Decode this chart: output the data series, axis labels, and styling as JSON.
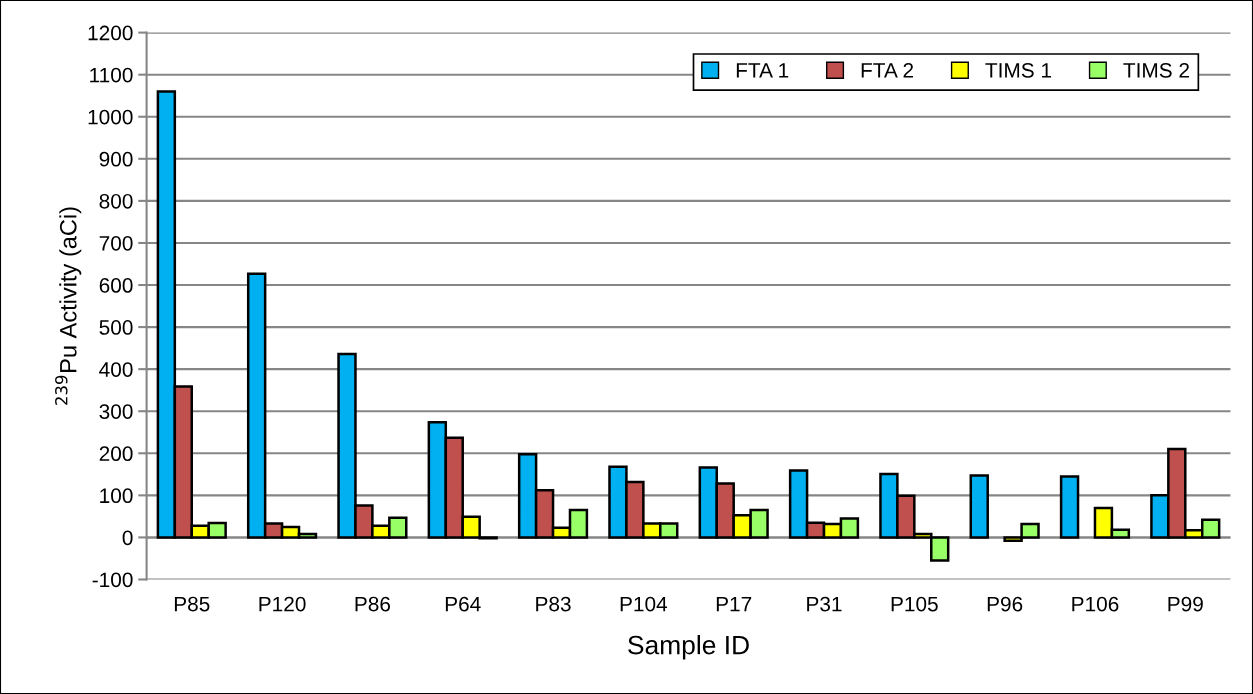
{
  "chart_data": {
    "type": "bar",
    "xlabel": "Sample ID",
    "ylabel": "$^{239}$Pu Activity (aCi)",
    "categories": [
      "P85",
      "P120",
      "P86",
      "P64",
      "P83",
      "P104",
      "P17",
      "P31",
      "P105",
      "P96",
      "P106",
      "P99"
    ],
    "series": [
      {
        "name": "FTA 1",
        "color": "#00b0f0",
        "values": [
          1060,
          627,
          436,
          274,
          198,
          168,
          166,
          159,
          151,
          147,
          145,
          100
        ]
      },
      {
        "name": "FTA 2",
        "color": "#c0504d",
        "values": [
          359,
          33,
          76,
          237,
          112,
          132,
          128,
          35,
          99,
          null,
          null,
          210
        ]
      },
      {
        "name": "TIMS 1",
        "color": "#ffff00",
        "values": [
          28,
          25,
          28,
          49,
          23,
          33,
          53,
          32,
          8,
          -8,
          70,
          17
        ]
      },
      {
        "name": "TIMS 2",
        "color": "#99ff66",
        "values": [
          34,
          8,
          47,
          -2,
          65,
          33,
          65,
          45,
          -55,
          32,
          18,
          42
        ]
      }
    ],
    "ylim": [
      -100,
      1200
    ],
    "yticks": [
      -100,
      0,
      100,
      200,
      300,
      400,
      500,
      600,
      700,
      800,
      900,
      1000,
      1100,
      1200
    ],
    "grid": "y",
    "legend": "top right"
  }
}
